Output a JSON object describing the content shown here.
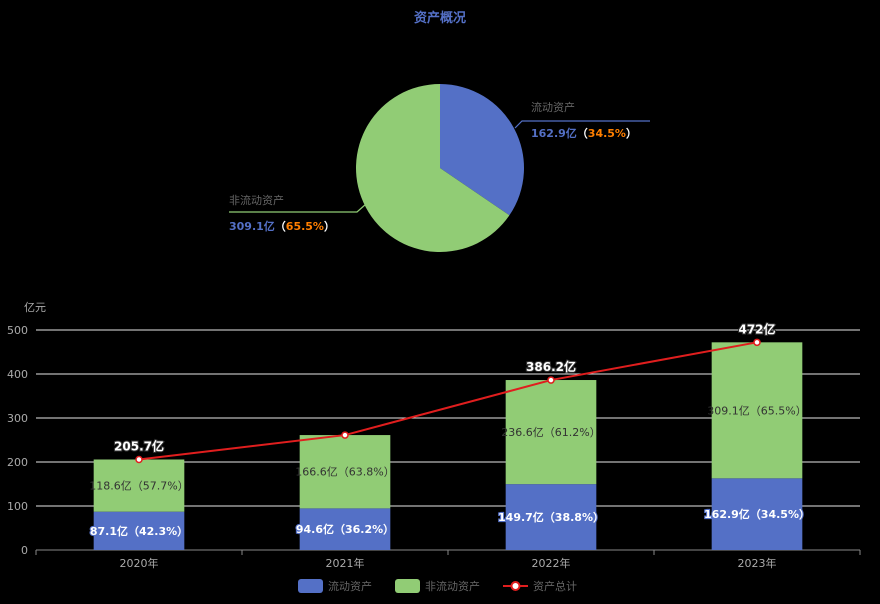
{
  "colors": {
    "background": "#000000",
    "current_assets": "#5470c6",
    "noncurrent_assets": "#91cc75",
    "total_line": "#e01e1e",
    "title": "#5470c6",
    "highlight_pct": "#ff7f00",
    "axis_text": "#aaaaaa",
    "grid": "#e6e6e6"
  },
  "chart_data": [
    {
      "type": "pie",
      "title": "资产概况",
      "slices": [
        {
          "name": "流动资产",
          "value": 162.9,
          "value_label": "162.9亿",
          "pct_label": "34.5%"
        },
        {
          "name": "非流动资产",
          "value": 309.1,
          "value_label": "309.1亿",
          "pct_label": "65.5%"
        }
      ]
    },
    {
      "type": "bar",
      "stacked": true,
      "ylabel": "亿元",
      "ylim": [
        0,
        500
      ],
      "yticks": [
        0,
        100,
        200,
        300,
        400,
        500
      ],
      "grid": true,
      "categories": [
        "2020年",
        "2021年",
        "2022年",
        "2023年"
      ],
      "series": [
        {
          "name": "流动资产",
          "kind": "bar",
          "values": [
            87.1,
            94.6,
            149.7,
            162.9
          ],
          "labels": [
            "87.1亿（42.3%）",
            "94.6亿（36.2%）",
            "149.7亿（38.8%）",
            "162.9亿（34.5%）"
          ]
        },
        {
          "name": "非流动资产",
          "kind": "bar",
          "values": [
            118.6,
            166.6,
            236.6,
            309.1
          ],
          "labels": [
            "118.6亿（57.7%）",
            "166.6亿（63.8%）",
            "236.6亿（61.2%）",
            "309.1亿（65.5%）"
          ]
        },
        {
          "name": "资产总计",
          "kind": "line",
          "values": [
            205.7,
            261.2,
            386.2,
            472
          ],
          "labels": [
            "205.7亿",
            "",
            "386.2亿",
            "472亿"
          ]
        }
      ],
      "legend_position": "bottom"
    }
  ]
}
